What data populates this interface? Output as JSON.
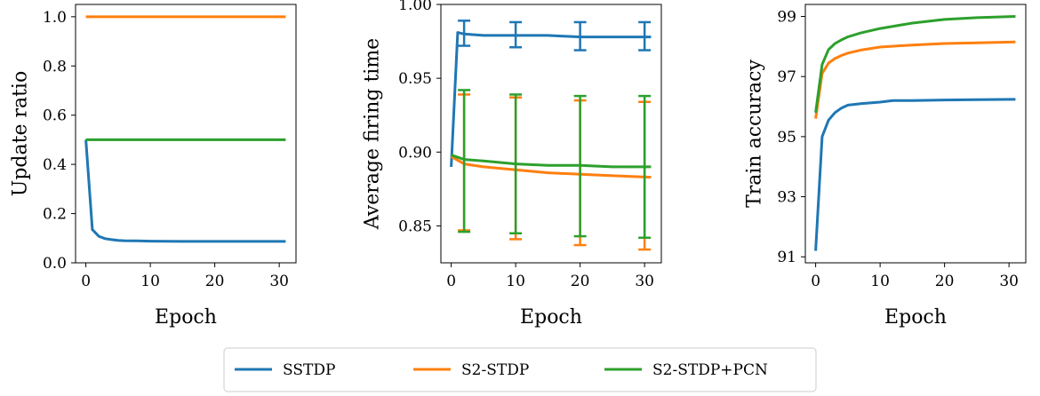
{
  "colors": {
    "SSTDP": "#1f77b4",
    "S2-STDP": "#ff7f0e",
    "S2-STDP+PCN": "#2ca02c"
  },
  "legend": {
    "entries": [
      "SSTDP",
      "S2-STDP",
      "S2-STDP+PCN"
    ]
  },
  "chart_data": [
    {
      "type": "line",
      "xlabel": "Epoch",
      "ylabel": "Update ratio",
      "xlim": [
        -1.6,
        32.6
      ],
      "ylim": [
        0.0,
        1.05
      ],
      "xticks": [
        0,
        10,
        20,
        30
      ],
      "yticks": [
        0.0,
        0.2,
        0.4,
        0.6,
        0.8,
        1.0
      ],
      "ytick_labels": [
        "0.0",
        "0.2",
        "0.4",
        "0.6",
        "0.8",
        "1.0"
      ],
      "series": [
        {
          "name": "SSTDP",
          "x": [
            0,
            1,
            2,
            3,
            4,
            5,
            6,
            8,
            10,
            15,
            20,
            25,
            31
          ],
          "y": [
            0.5,
            0.135,
            0.108,
            0.098,
            0.094,
            0.091,
            0.09,
            0.089,
            0.088,
            0.087,
            0.087,
            0.087,
            0.087
          ]
        },
        {
          "name": "S2-STDP",
          "x": [
            0,
            31
          ],
          "y": [
            1.0,
            1.0
          ]
        },
        {
          "name": "S2-STDP+PCN",
          "x": [
            0,
            31
          ],
          "y": [
            0.5,
            0.5
          ]
        }
      ]
    },
    {
      "type": "line",
      "xlabel": "Epoch",
      "ylabel": "Average firing time",
      "xlim": [
        -1.6,
        32.6
      ],
      "ylim": [
        0.825,
        1.0
      ],
      "xticks": [
        0,
        10,
        20,
        30
      ],
      "yticks": [
        0.85,
        0.9,
        0.95,
        1.0
      ],
      "ytick_labels": [
        "0.85",
        "0.90",
        "0.95",
        "1.00"
      ],
      "series": [
        {
          "name": "SSTDP",
          "x": [
            0,
            1,
            2,
            5,
            10,
            15,
            20,
            25,
            31
          ],
          "y": [
            0.89,
            0.981,
            0.98,
            0.979,
            0.979,
            0.979,
            0.978,
            0.978,
            0.978
          ],
          "errorbars": [
            {
              "x": 2,
              "lo": 0.972,
              "hi": 0.989
            },
            {
              "x": 10,
              "lo": 0.971,
              "hi": 0.988
            },
            {
              "x": 20,
              "lo": 0.969,
              "hi": 0.988
            },
            {
              "x": 30,
              "lo": 0.969,
              "hi": 0.988
            }
          ]
        },
        {
          "name": "S2-STDP",
          "x": [
            0,
            2,
            5,
            10,
            15,
            20,
            25,
            31
          ],
          "y": [
            0.897,
            0.892,
            0.89,
            0.888,
            0.886,
            0.885,
            0.884,
            0.883
          ],
          "errorbars": [
            {
              "x": 2,
              "lo": 0.847,
              "hi": 0.939
            },
            {
              "x": 10,
              "lo": 0.841,
              "hi": 0.937
            },
            {
              "x": 20,
              "lo": 0.837,
              "hi": 0.935
            },
            {
              "x": 30,
              "lo": 0.834,
              "hi": 0.934
            }
          ]
        },
        {
          "name": "S2-STDP+PCN",
          "x": [
            0,
            2,
            5,
            10,
            15,
            20,
            25,
            31
          ],
          "y": [
            0.898,
            0.895,
            0.894,
            0.892,
            0.891,
            0.891,
            0.89,
            0.89
          ],
          "errorbars": [
            {
              "x": 2,
              "lo": 0.846,
              "hi": 0.942
            },
            {
              "x": 10,
              "lo": 0.845,
              "hi": 0.939
            },
            {
              "x": 20,
              "lo": 0.843,
              "hi": 0.938
            },
            {
              "x": 30,
              "lo": 0.842,
              "hi": 0.938
            }
          ]
        }
      ]
    },
    {
      "type": "line",
      "xlabel": "Epoch",
      "ylabel": "Train accuracy",
      "xlim": [
        -1.6,
        32.6
      ],
      "ylim": [
        90.8,
        99.4
      ],
      "xticks": [
        0,
        10,
        20,
        30
      ],
      "yticks": [
        91,
        93,
        95,
        97,
        99
      ],
      "ytick_labels": [
        "91",
        "93",
        "95",
        "97",
        "99"
      ],
      "series": [
        {
          "name": "SSTDP",
          "x": [
            0,
            1,
            2,
            3,
            4,
            5,
            7,
            10,
            12,
            15,
            20,
            25,
            31
          ],
          "y": [
            91.2,
            95.0,
            95.55,
            95.8,
            95.95,
            96.05,
            96.1,
            96.15,
            96.2,
            96.2,
            96.22,
            96.23,
            96.24
          ]
        },
        {
          "name": "S2-STDP",
          "x": [
            0,
            1,
            2,
            3,
            4,
            5,
            7,
            10,
            15,
            20,
            25,
            31
          ],
          "y": [
            95.6,
            97.1,
            97.45,
            97.6,
            97.7,
            97.78,
            97.88,
            97.98,
            98.05,
            98.1,
            98.12,
            98.15
          ]
        },
        {
          "name": "S2-STDP+PCN",
          "x": [
            0,
            1,
            2,
            3,
            4,
            5,
            7,
            10,
            15,
            20,
            25,
            31
          ],
          "y": [
            95.8,
            97.4,
            97.9,
            98.1,
            98.22,
            98.32,
            98.45,
            98.6,
            98.78,
            98.9,
            98.96,
            99.0
          ]
        }
      ]
    }
  ]
}
